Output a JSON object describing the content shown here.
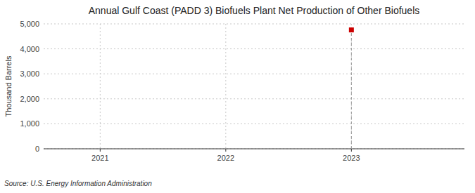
{
  "chart_data": {
    "type": "scatter",
    "title": "Annual Gulf Coast (PADD 3) Biofuels Plant Net Production of Other Biofuels",
    "ylabel": "Thousand Barrels",
    "source": "Source: U.S. Energy Information Administration",
    "x": [
      2023
    ],
    "values": [
      4757
    ],
    "color": "#cc0000",
    "marker": "square",
    "xlim": [
      2020.55,
      2023.9
    ],
    "ylim": [
      0,
      5000
    ],
    "xticks": [
      2021,
      2022,
      2023
    ],
    "yticks": [
      0,
      {
        "value": 1000,
        "label": "1,000"
      },
      {
        "value": 2000,
        "label": "2,000"
      },
      {
        "value": 3000,
        "label": "3,000"
      },
      {
        "value": 4000,
        "label": "4,000"
      },
      {
        "value": 5000,
        "label": "5,000"
      }
    ],
    "grid": true
  }
}
